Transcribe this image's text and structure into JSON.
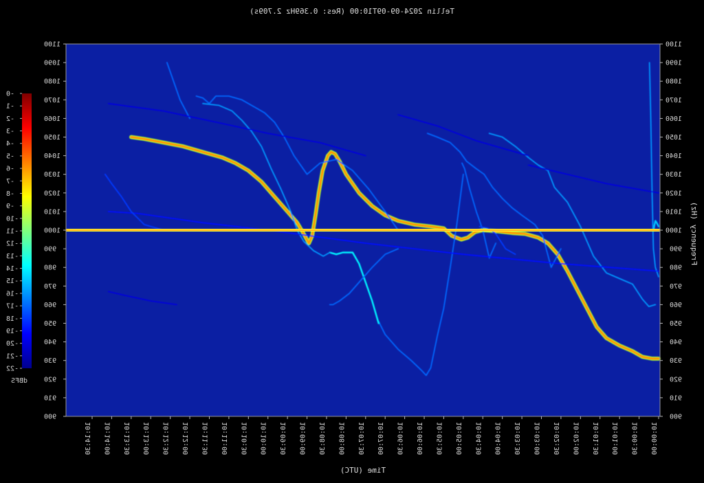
{
  "chart_data": {
    "type": "heatmap",
    "title": "Tellin 2024-09-09T10:00 (Res: 0.369Hz 2.709s)",
    "xlabel": "Time (UTC)",
    "ylabel": "Frequency (Hz)",
    "colorbar_label": "dBFS",
    "mirrored": true,
    "ylim": [
      900,
      1100
    ],
    "yticks": [
      900,
      910,
      920,
      930,
      940,
      950,
      960,
      970,
      980,
      990,
      1000,
      1010,
      1020,
      1030,
      1040,
      1050,
      1060,
      1070,
      1080,
      1090,
      1100
    ],
    "xticks": [
      "10:00:00",
      "10:00:30",
      "10:01:00",
      "10:01:30",
      "10:02:00",
      "10:02:30",
      "10:03:00",
      "10:03:30",
      "10:04:00",
      "10:04:30",
      "10:05:00",
      "10:05:30",
      "10:06:00",
      "10:06:30",
      "10:07:00",
      "10:07:30",
      "10:08:00",
      "10:08:30",
      "10:09:00",
      "10:09:30",
      "10:10:00",
      "10:10:30",
      "10:11:00",
      "10:11:30",
      "10:12:00",
      "10:12:30",
      "10:13:00",
      "10:13:30",
      "10:14:00",
      "10:14:30"
    ],
    "colorbar": {
      "range": [
        -22,
        0
      ],
      "ticks": [
        "-22",
        "-21",
        "-20",
        "-19",
        "-18",
        "-17",
        "-16",
        "-15",
        "-14",
        "-13",
        "-12",
        "-11",
        "-10",
        "-9",
        "-8",
        "-7",
        "-6",
        "-5",
        "-4",
        "-3",
        "-2",
        "-1",
        "-0"
      ],
      "colormap": "jet"
    },
    "colors": {
      "background": "#000000",
      "plot_background": "#0b1fa3",
      "carrier": "#ff9a1a"
    },
    "carrier_hz": 1000,
    "traces": [
      {
        "level_db": -6,
        "points": [
          [
            0,
            931
          ],
          [
            10,
            931
          ],
          [
            25,
            932
          ],
          [
            40,
            935
          ],
          [
            60,
            938
          ],
          [
            80,
            942
          ],
          [
            95,
            948
          ],
          [
            110,
            958
          ],
          [
            125,
            968
          ],
          [
            140,
            978
          ],
          [
            155,
            987
          ],
          [
            170,
            993
          ],
          [
            185,
            996
          ],
          [
            205,
            998
          ],
          [
            225,
            998.5
          ],
          [
            250,
            999.5
          ],
          [
            270,
            1000
          ],
          [
            282,
            999
          ],
          [
            293,
            996
          ],
          [
            303,
            995
          ],
          [
            318,
            997
          ],
          [
            330,
            1001
          ],
          [
            350,
            1002
          ],
          [
            375,
            1003
          ],
          [
            400,
            1005
          ],
          [
            420,
            1008
          ],
          [
            440,
            1013
          ],
          [
            460,
            1020
          ],
          [
            480,
            1030
          ],
          [
            490,
            1037
          ],
          [
            497,
            1041
          ],
          [
            503,
            1042
          ],
          [
            508,
            1040
          ],
          [
            516,
            1032
          ],
          [
            522,
            1020
          ],
          [
            527,
            1008
          ],
          [
            532,
            997
          ],
          [
            537,
            993
          ],
          [
            545,
            998
          ],
          [
            555,
            1004
          ],
          [
            570,
            1010
          ],
          [
            590,
            1018
          ],
          [
            610,
            1026
          ],
          [
            630,
            1032
          ],
          [
            650,
            1036
          ],
          [
            670,
            1039
          ],
          [
            700,
            1042
          ],
          [
            730,
            1045
          ],
          [
            760,
            1047
          ],
          [
            790,
            1049
          ],
          [
            810,
            1050
          ]
        ]
      },
      {
        "level_db": -15,
        "points": [
          [
            0,
            1002
          ],
          [
            3,
            1004
          ],
          [
            5,
            1005
          ],
          [
            8,
            1000
          ]
        ]
      },
      {
        "level_db": -16,
        "points": [
          [
            0,
            975
          ],
          [
            5,
            980
          ],
          [
            8,
            990
          ],
          [
            10,
            1020
          ],
          [
            12,
            1060
          ],
          [
            14,
            1090
          ]
        ]
      },
      {
        "level_db": -16,
        "points": [
          [
            5,
            960
          ],
          [
            15,
            959
          ],
          [
            25,
            963
          ],
          [
            40,
            971
          ],
          [
            60,
            974
          ],
          [
            80,
            977
          ],
          [
            100,
            986
          ],
          [
            120,
            1002
          ],
          [
            140,
            1015
          ],
          [
            160,
            1023
          ],
          [
            170,
            1032
          ],
          [
            185,
            1035
          ],
          [
            200,
            1039
          ],
          [
            220,
            1045
          ],
          [
            240,
            1050
          ],
          [
            260,
            1052
          ]
        ]
      },
      {
        "level_db": -17,
        "points": [
          [
            150,
            990
          ],
          [
            165,
            980
          ],
          [
            178,
            997
          ],
          [
            190,
            1003
          ],
          [
            210,
            1008
          ],
          [
            225,
            1012
          ],
          [
            240,
            1017
          ],
          [
            255,
            1023
          ],
          [
            268,
            1030
          ],
          [
            280,
            1033
          ],
          [
            295,
            1037
          ],
          [
            305,
            1042
          ],
          [
            320,
            1047
          ],
          [
            340,
            1050
          ],
          [
            355,
            1052
          ]
        ]
      },
      {
        "level_db": -17,
        "points": [
          [
            250,
            993
          ],
          [
            260,
            985
          ],
          [
            270,
            1000
          ],
          [
            280,
            1010
          ],
          [
            290,
            1022
          ],
          [
            298,
            1033
          ],
          [
            302,
            1036
          ]
        ]
      },
      {
        "level_db": -18,
        "points": [
          [
            220,
            987
          ],
          [
            235,
            990
          ],
          [
            250,
            998
          ],
          [
            262,
            1001
          ],
          [
            275,
            1002
          ]
        ]
      },
      {
        "level_db": -17,
        "points": [
          [
            300,
            1030
          ],
          [
            310,
            1003
          ],
          [
            320,
            980
          ],
          [
            330,
            958
          ],
          [
            340,
            943
          ],
          [
            350,
            926
          ],
          [
            357,
            922
          ],
          [
            365,
            925
          ],
          [
            380,
            930
          ],
          [
            400,
            936
          ],
          [
            420,
            944
          ],
          [
            430,
            951
          ]
        ]
      },
      {
        "level_db": -14,
        "points": [
          [
            430,
            950
          ],
          [
            440,
            962
          ],
          [
            450,
            972
          ],
          [
            460,
            982
          ],
          [
            470,
            988
          ],
          [
            485,
            988
          ],
          [
            495,
            987
          ],
          [
            505,
            988
          ]
        ]
      },
      {
        "level_db": -16,
        "points": [
          [
            505,
            988
          ],
          [
            515,
            986
          ],
          [
            530,
            989
          ],
          [
            545,
            994
          ],
          [
            555,
            1000
          ],
          [
            565,
            1010
          ],
          [
            580,
            1022
          ],
          [
            595,
            1033
          ],
          [
            610,
            1045
          ],
          [
            625,
            1053
          ],
          [
            640,
            1059
          ],
          [
            655,
            1064
          ],
          [
            675,
            1067
          ],
          [
            700,
            1068
          ]
        ]
      },
      {
        "level_db": -17,
        "points": [
          [
            400,
            1000
          ],
          [
            420,
            1010
          ],
          [
            445,
            1022
          ],
          [
            470,
            1032
          ],
          [
            495,
            1038
          ],
          [
            520,
            1036
          ],
          [
            540,
            1030
          ],
          [
            560,
            1040
          ],
          [
            575,
            1050
          ],
          [
            590,
            1058
          ],
          [
            605,
            1063
          ],
          [
            620,
            1066
          ],
          [
            640,
            1070
          ],
          [
            660,
            1072
          ],
          [
            680,
            1072
          ],
          [
            690,
            1068
          ],
          [
            700,
            1071
          ],
          [
            710,
            1072
          ]
        ]
      },
      {
        "level_db": -17,
        "points": [
          [
            720,
            1060
          ],
          [
            735,
            1070
          ],
          [
            745,
            1080
          ],
          [
            755,
            1090
          ]
        ]
      },
      {
        "level_db": -17,
        "points": [
          [
            400,
            990
          ],
          [
            420,
            987
          ],
          [
            440,
            980
          ],
          [
            460,
            972
          ],
          [
            475,
            966
          ],
          [
            490,
            962
          ],
          [
            500,
            960
          ],
          [
            505,
            960
          ]
        ]
      },
      {
        "level_db": -19,
        "points": [
          [
            0,
            978
          ],
          [
            150,
            982
          ],
          [
            300,
            987
          ],
          [
            450,
            993
          ],
          [
            600,
            1000
          ],
          [
            700,
            1004
          ],
          [
            800,
            1009
          ],
          [
            845,
            1010
          ]
        ]
      },
      {
        "level_db": -20,
        "points": [
          [
            0,
            1020
          ],
          [
            80,
            1025
          ],
          [
            140,
            1030
          ],
          [
            200,
            1035
          ]
        ]
      },
      {
        "level_db": -20,
        "points": [
          [
            200,
            1040
          ],
          [
            280,
            1048
          ],
          [
            340,
            1056
          ],
          [
            400,
            1062
          ]
        ]
      },
      {
        "level_db": -20,
        "points": [
          [
            450,
            1040
          ],
          [
            520,
            1047
          ],
          [
            600,
            1052
          ],
          [
            680,
            1058
          ],
          [
            760,
            1064
          ],
          [
            845,
            1068
          ]
        ]
      },
      {
        "level_db": -20,
        "points": [
          [
            740,
            960
          ],
          [
            780,
            962
          ],
          [
            820,
            965
          ],
          [
            845,
            967
          ]
        ]
      },
      {
        "level_db": -18,
        "points": [
          [
            760,
            1000
          ],
          [
            790,
            1003
          ],
          [
            810,
            1010
          ],
          [
            825,
            1018
          ],
          [
            840,
            1025
          ],
          [
            850,
            1030
          ]
        ]
      }
    ]
  }
}
